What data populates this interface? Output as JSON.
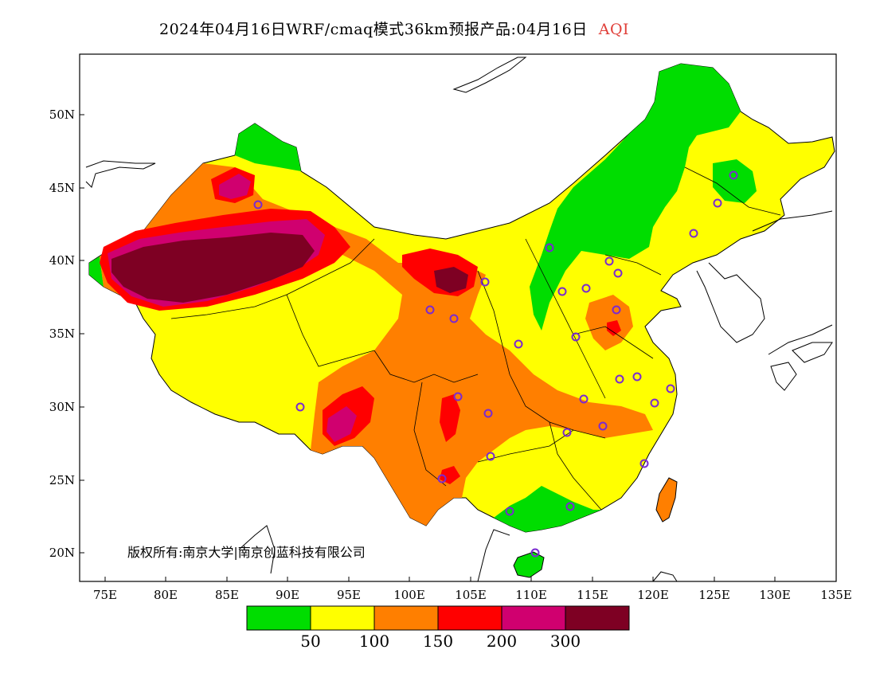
{
  "title": {
    "main": "2024年04月16日WRF/cmaq模式36km预报产品:04月16日",
    "parameter": "AQI"
  },
  "axes": {
    "y_labels": [
      "50N",
      "45N",
      "40N",
      "35N",
      "30N",
      "25N",
      "20N"
    ],
    "x_labels": [
      "75E",
      "80E",
      "85E",
      "90E",
      "95E",
      "100E",
      "105E",
      "110E",
      "115E",
      "120E",
      "125E",
      "130E",
      "135E"
    ]
  },
  "copyright": "版权所有:南京大学|南京创蓝科技有限公司",
  "legend": {
    "colors": [
      "#00dd00",
      "#ffff00",
      "#ff7f00",
      "#ff0000",
      "#d0006f",
      "#7e0023"
    ],
    "labels": [
      "50",
      "100",
      "150",
      "200",
      "300"
    ]
  },
  "regions": {
    "land_fill": "#ffff00",
    "good_fill": "#00dd00",
    "moderate_fill": "#ff7f00",
    "unhealthy_fill": "#ff0000",
    "very_unhealthy_fill": "#d0006f",
    "hazardous_fill": "#7e0023"
  },
  "station_marker_color": "#7a2ad0"
}
